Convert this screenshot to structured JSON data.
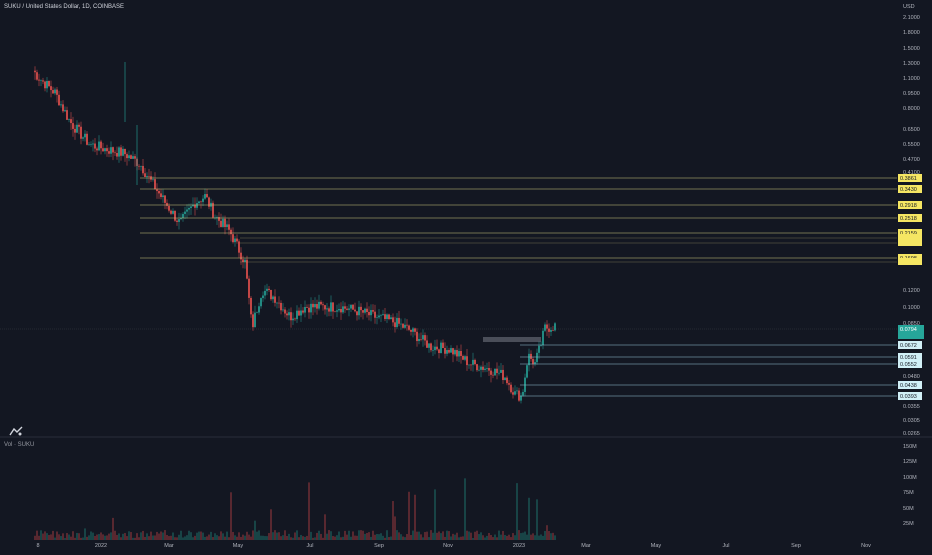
{
  "header": {
    "title": "SUKU / United States Dollar, 1D, COINBASE",
    "currency": "USD"
  },
  "volume_panel": {
    "label": "Vol · SUKU"
  },
  "chart_data": {
    "type": "candlestick",
    "title": "SUKU / United States Dollar, 1D, COINBASE",
    "y_scale": "log",
    "price_ticks": [
      "2.1000",
      "1.8000",
      "1.5000",
      "1.3000",
      "1.1000",
      "0.9500",
      "0.8000",
      "0.6500",
      "0.5500",
      "0.4700",
      "0.4100",
      "0.1200",
      "0.1000",
      "0.0850",
      "0.0480",
      "0.0355",
      "0.0305",
      "0.0265"
    ],
    "x_ticks": [
      "8",
      "2022",
      "Mar",
      "May",
      "Jul",
      "Sep",
      "Nov",
      "2023",
      "Mar",
      "May",
      "Jul",
      "Sep",
      "Nov"
    ],
    "volume_ticks": [
      "150M",
      "125M",
      "100M",
      "75M",
      "50M",
      "25M"
    ],
    "current_price": {
      "value": "0.0794",
      "color": "#26a69a"
    },
    "resistance_levels": [
      {
        "value": "0.3861",
        "color": "#f5e663"
      },
      {
        "value": "0.3430",
        "color": "#f5e663"
      },
      {
        "value": "0.2918",
        "color": "#f5e663"
      },
      {
        "value": "0.2518",
        "color": "#f5e663"
      },
      {
        "value": "0.2159",
        "color": "#f5e663"
      },
      {
        "value": "0.1698",
        "color": "#f5e663"
      }
    ],
    "support_levels": [
      {
        "value": "0.0672",
        "color": "#d1f0f7"
      },
      {
        "value": "0.0591",
        "color": "#d1f0f7"
      },
      {
        "value": "0.0552",
        "color": "#d1f0f7"
      },
      {
        "value": "0.0438",
        "color": "#d1f0f7"
      },
      {
        "value": "0.0393",
        "color": "#d1f0f7"
      }
    ],
    "colors": {
      "up": "#26a69a",
      "down": "#ef5350",
      "background": "#131722",
      "grid": "#2a2e39"
    }
  }
}
